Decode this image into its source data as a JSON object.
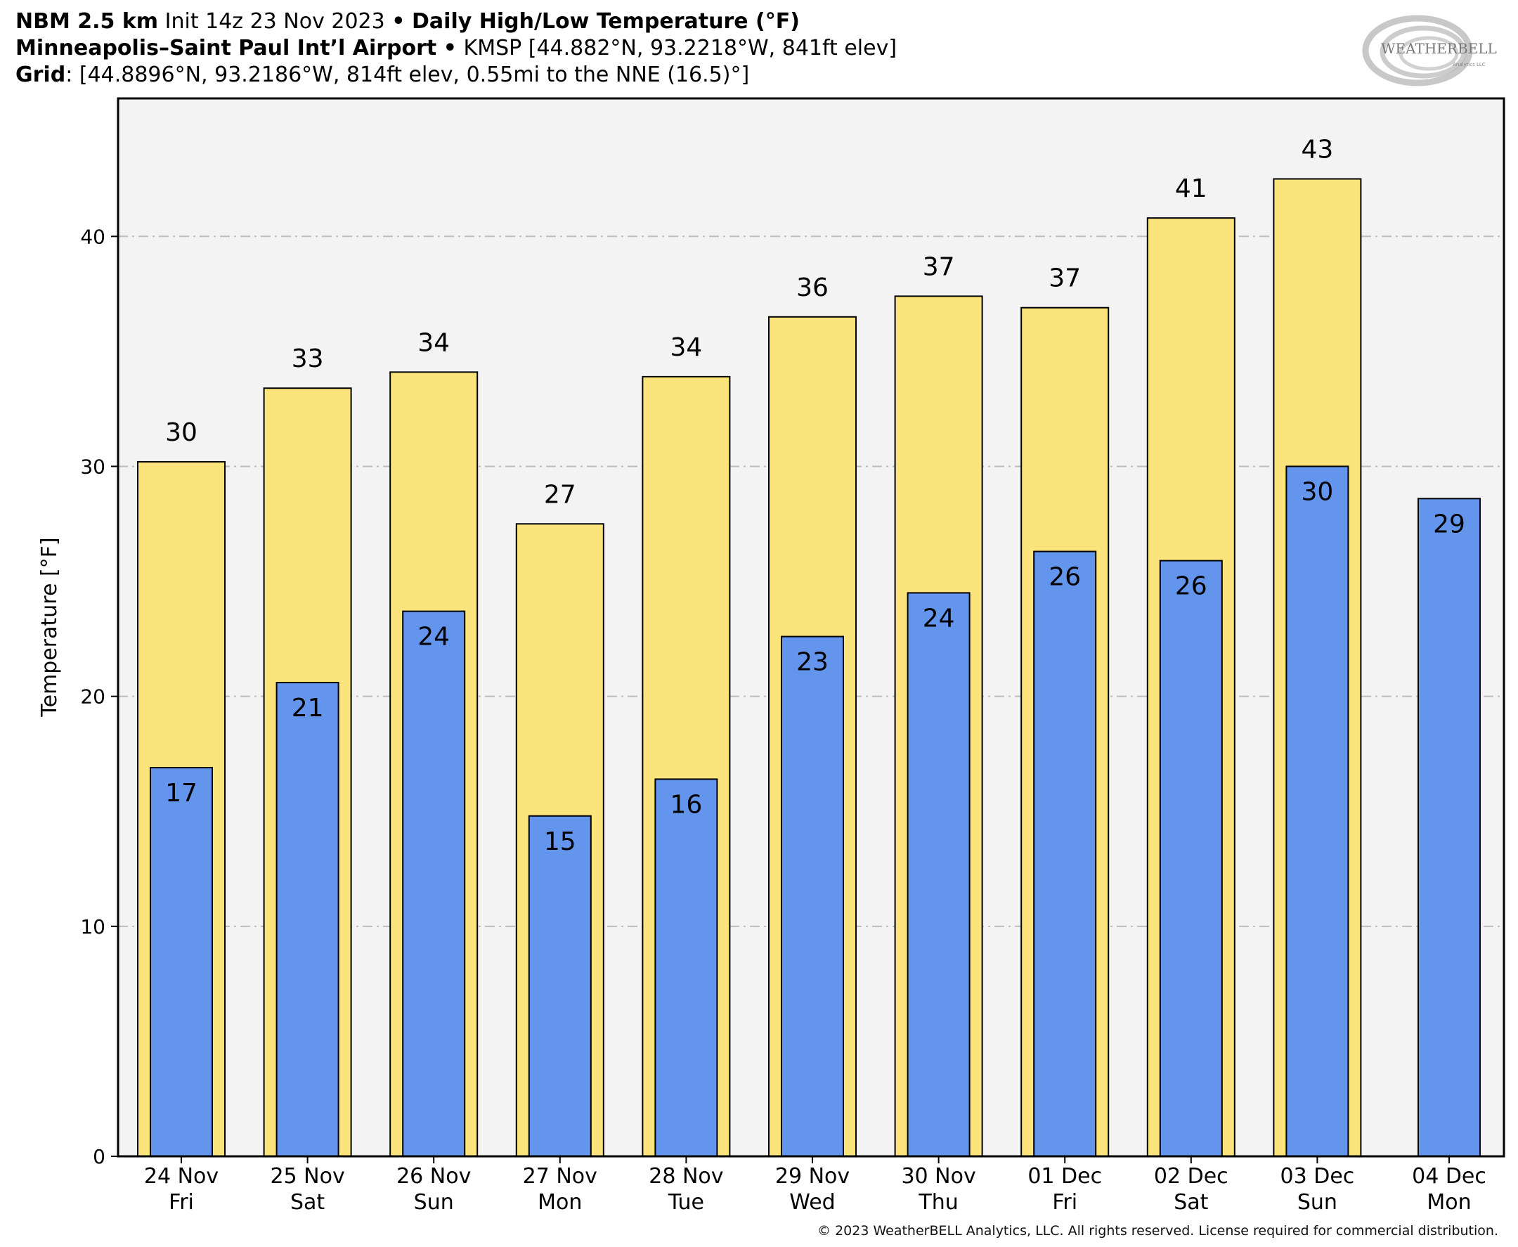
{
  "header": {
    "model": "NBM 2.5 km",
    "init": "Init 14z 23 Nov 2023",
    "sep1": "•",
    "product": "Daily High/Low Temperature (°F)",
    "station_name": "Minneapolis–Saint Paul Int’l Airport",
    "sep2": "•",
    "station_info": "KMSP [44.882°N, 93.2218°W, 841ft elev]",
    "grid_label": "Grid",
    "grid_info": ": [44.8896°N, 93.2186°W, 814ft elev, 0.55mi to the NNE (16.5)°]"
  },
  "logo": {
    "text": "WEATHERBELL",
    "sub": "Analytics LLC"
  },
  "copyright": "© 2023 WeatherBELL Analytics, LLC. All rights reserved. License required for commercial distribution.",
  "chart_data": {
    "type": "bar",
    "ylabel": "Temperature [°F]",
    "ylim": [
      0,
      46
    ],
    "yticks": [
      0,
      10,
      20,
      30,
      40
    ],
    "grid": true,
    "categories": [
      "24 Nov",
      "25 Nov",
      "26 Nov",
      "27 Nov",
      "28 Nov",
      "29 Nov",
      "30 Nov",
      "01 Dec",
      "02 Dec",
      "03 Dec",
      "04 Dec"
    ],
    "weekdays": [
      "Fri",
      "Sat",
      "Sun",
      "Mon",
      "Tue",
      "Wed",
      "Thu",
      "Fri",
      "Sat",
      "Sun",
      "Mon"
    ],
    "series": [
      {
        "values": [
          30.2,
          33.4,
          34.1,
          27.5,
          33.9,
          36.5,
          37.4,
          36.9,
          40.8,
          42.5,
          null
        ],
        "labels": [
          "30",
          "33",
          "34",
          "27",
          "34",
          "36",
          "37",
          "37",
          "41",
          "43",
          ""
        ],
        "color": "#fce47c"
      },
      {
        "values": [
          16.9,
          20.6,
          23.7,
          14.8,
          16.4,
          22.6,
          24.5,
          26.3,
          25.9,
          30.0,
          28.6
        ],
        "labels": [
          "17",
          "21",
          "24",
          "15",
          "16",
          "23",
          "24",
          "26",
          "26",
          "30",
          "29"
        ],
        "color": "#6495ed"
      }
    ],
    "colors": {
      "plot_bg": "#f4f3f4",
      "grid": "#bdbdbd",
      "frame": "#000000"
    }
  }
}
